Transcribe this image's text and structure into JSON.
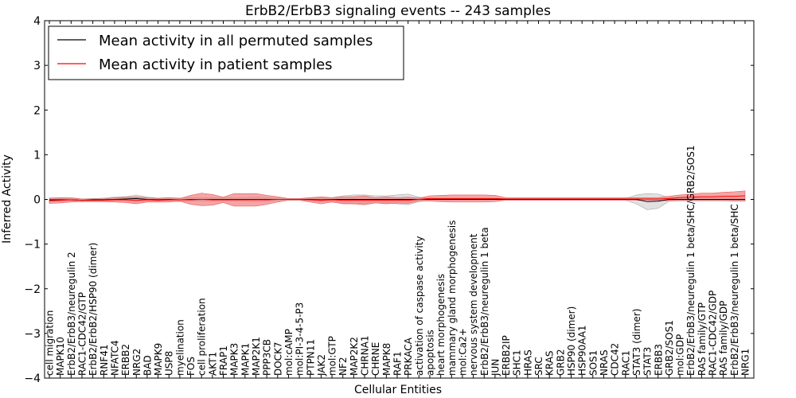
{
  "chart_data": {
    "type": "line",
    "title": "ErbB2/ErbB3 signaling events -- 243 samples",
    "xlabel": "Cellular Entities",
    "ylabel": "Inferred Activity",
    "ylim": [
      -4,
      4
    ],
    "yticks": [
      4,
      3,
      2,
      1,
      0,
      -1,
      -2,
      -3,
      -4
    ],
    "ytick_labels": [
      "4",
      "3",
      "2",
      "1",
      "0",
      "−1",
      "−2",
      "−3",
      "−4"
    ],
    "legend_position": "top-left",
    "categories": [
      "cell migration",
      "MAPK10",
      "ErbB2/ErbB3/neuregulin 2",
      "RAC1-CDC42/GTP",
      "ErbB2/ErbB2/HSP90 (dimer)",
      "RNF41",
      "NFATC4",
      "ERBB2",
      "NRG2",
      "BAD",
      "MAPK9",
      "USP8",
      "myelination",
      "FOS",
      "cell proliferation",
      "AKT1",
      "FRAP1",
      "MAPK3",
      "MAPK1",
      "MAP2K1",
      "PPP3CB",
      "DOCK7",
      "mol:cAMP",
      "mol:PI-3-4-5-P3",
      "PTPN11",
      "JAK2",
      "mol:GTP",
      "NF2",
      "MAP2K2",
      "CHRNA1",
      "CHRNE",
      "MAPK8",
      "RAF1",
      "PRKACA",
      "activation of caspase activity",
      "apoptosis",
      "heart morphogenesis",
      "mammary gland morphogenesis",
      "mol:Ca2+",
      "nervous system development",
      "ErbB2/ErbB3/neuregulin 1 beta",
      "JUN",
      "ERBB2IP",
      "SHC1",
      "HRAS",
      "SRC",
      "KRAS",
      "GRB2",
      "HSP90 (dimer)",
      "HSP90AA1",
      "SOS1",
      "NRAS",
      "CDC42",
      "RAC1",
      "STAT3 (dimer)",
      "STAT3",
      "ERBB3",
      "GRB2/SOS1",
      "mol:GDP",
      "ErbB2/ErbB3/neuregulin 1 beta/SHC/GRB2/SOS1",
      "RAS family/GTP",
      "RAC1-CDC42/GDP",
      "RAS family/GDP",
      "ErbB2/ErbB3/neuregulin 1 beta/SHC",
      "NRG1"
    ],
    "series": [
      {
        "name": "Mean activity in all permuted samples",
        "color": "#000000",
        "band_color": "#c8c8c8",
        "values": [
          -0.01,
          -0.01,
          -0.01,
          -0.02,
          -0.01,
          -0.01,
          0.0,
          0.01,
          0.02,
          0.0,
          -0.01,
          0.0,
          -0.01,
          0.0,
          0.0,
          0.0,
          0.0,
          0.0,
          0.0,
          0.0,
          0.0,
          0.0,
          0.0,
          0.0,
          0.0,
          -0.01,
          0.0,
          0.0,
          0.0,
          0.0,
          0.0,
          0.0,
          0.0,
          0.0,
          0.0,
          0.0,
          0.0,
          0.0,
          0.0,
          0.0,
          0.0,
          0.0,
          0.0,
          0.0,
          0.0,
          0.0,
          0.0,
          0.0,
          0.0,
          0.0,
          0.0,
          0.0,
          0.0,
          0.0,
          0.0,
          -0.05,
          -0.04,
          0.0,
          0.0,
          0.0,
          0.0,
          0.0,
          0.0,
          0.0,
          0.0
        ],
        "band": [
          0.04,
          0.04,
          0.03,
          0.03,
          0.03,
          0.04,
          0.05,
          0.05,
          0.08,
          0.05,
          0.04,
          0.04,
          0.04,
          0.04,
          0.04,
          0.04,
          0.04,
          0.04,
          0.04,
          0.05,
          0.04,
          0.03,
          0.02,
          0.02,
          0.03,
          0.04,
          0.04,
          0.08,
          0.1,
          0.1,
          0.08,
          0.08,
          0.1,
          0.12,
          0.05,
          0.02,
          0.02,
          0.02,
          0.02,
          0.02,
          0.02,
          0.02,
          0.02,
          0.02,
          0.02,
          0.02,
          0.02,
          0.02,
          0.02,
          0.02,
          0.02,
          0.02,
          0.02,
          0.02,
          0.1,
          0.18,
          0.16,
          0.04,
          0.04,
          0.04,
          0.04,
          0.04,
          0.04,
          0.04,
          0.04
        ]
      },
      {
        "name": "Mean activity in patient samples",
        "color": "#ff0000",
        "band_color": "#f08080",
        "values": [
          -0.03,
          -0.02,
          -0.01,
          -0.02,
          -0.02,
          -0.02,
          -0.01,
          -0.01,
          -0.02,
          -0.01,
          -0.02,
          -0.01,
          -0.01,
          -0.01,
          0.0,
          -0.01,
          -0.01,
          -0.01,
          -0.01,
          -0.01,
          -0.01,
          0.0,
          0.0,
          0.0,
          -0.01,
          -0.02,
          -0.01,
          -0.02,
          -0.02,
          -0.02,
          -0.02,
          -0.02,
          -0.02,
          -0.02,
          0.0,
          0.02,
          0.02,
          0.02,
          0.02,
          0.02,
          0.02,
          0.02,
          0.01,
          0.01,
          0.01,
          0.01,
          0.01,
          0.01,
          0.01,
          0.01,
          0.01,
          0.01,
          0.01,
          0.01,
          0.01,
          0.01,
          0.01,
          0.02,
          0.04,
          0.05,
          0.06,
          0.06,
          0.07,
          0.07,
          0.08
        ],
        "band": [
          0.06,
          0.06,
          0.05,
          0.03,
          0.03,
          0.03,
          0.05,
          0.06,
          0.08,
          0.05,
          0.04,
          0.05,
          0.03,
          0.1,
          0.14,
          0.12,
          0.06,
          0.14,
          0.14,
          0.14,
          0.1,
          0.06,
          0.02,
          0.02,
          0.05,
          0.08,
          0.05,
          0.08,
          0.08,
          0.1,
          0.06,
          0.08,
          0.06,
          0.07,
          0.03,
          0.06,
          0.07,
          0.08,
          0.08,
          0.08,
          0.08,
          0.07,
          0.03,
          0.03,
          0.03,
          0.03,
          0.03,
          0.03,
          0.03,
          0.03,
          0.03,
          0.03,
          0.03,
          0.03,
          0.03,
          0.03,
          0.03,
          0.05,
          0.06,
          0.07,
          0.08,
          0.08,
          0.09,
          0.1,
          0.11
        ]
      }
    ]
  }
}
